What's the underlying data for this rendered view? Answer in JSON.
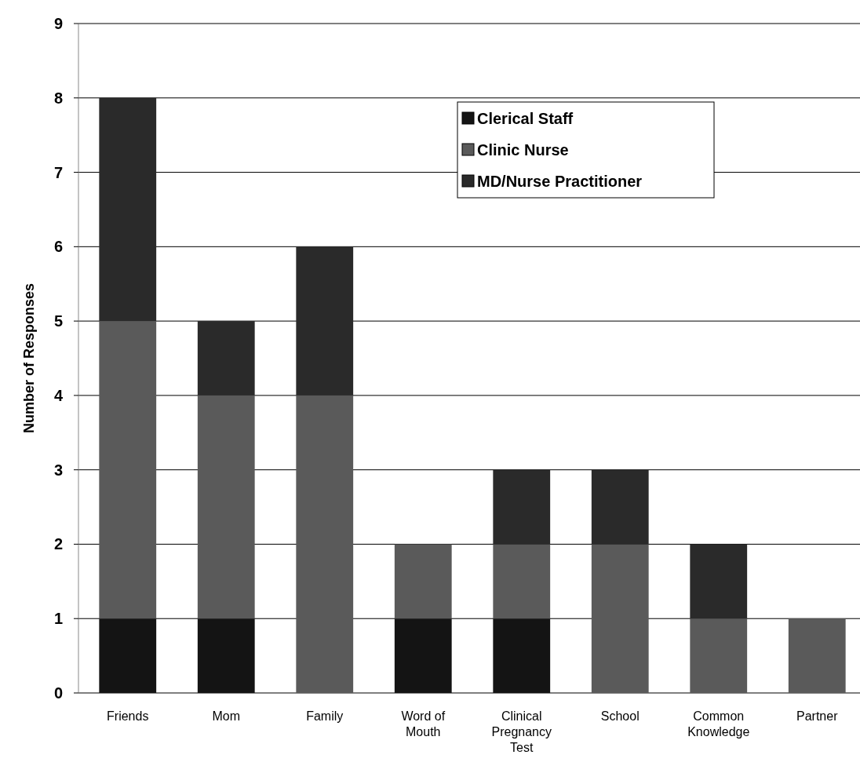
{
  "chart_data": {
    "type": "bar",
    "stacked": true,
    "ylabel": "Number of Responses",
    "categories": [
      "Friends",
      "Mom",
      "Family",
      "Word of Mouth",
      "Clinical Pregnancy Test",
      "School",
      "Common Knowledge",
      "Partner"
    ],
    "series": [
      {
        "name": "Clerical Staff",
        "color": "#141414",
        "values": [
          1,
          1,
          0,
          1,
          1,
          0,
          0,
          0
        ]
      },
      {
        "name": "Clinic Nurse",
        "color": "#5a5a5a",
        "values": [
          4,
          3,
          4,
          1,
          1,
          2,
          1,
          1
        ]
      },
      {
        "name": "MD/Nurse Practitioner",
        "color": "#2a2a2a",
        "values": [
          3,
          1,
          2,
          0,
          1,
          1,
          1,
          0
        ]
      }
    ],
    "ylim": [
      0,
      9
    ],
    "yticks": [
      0,
      1,
      2,
      3,
      4,
      5,
      6,
      7,
      8,
      9
    ],
    "grid": "y",
    "legend": "top right"
  }
}
